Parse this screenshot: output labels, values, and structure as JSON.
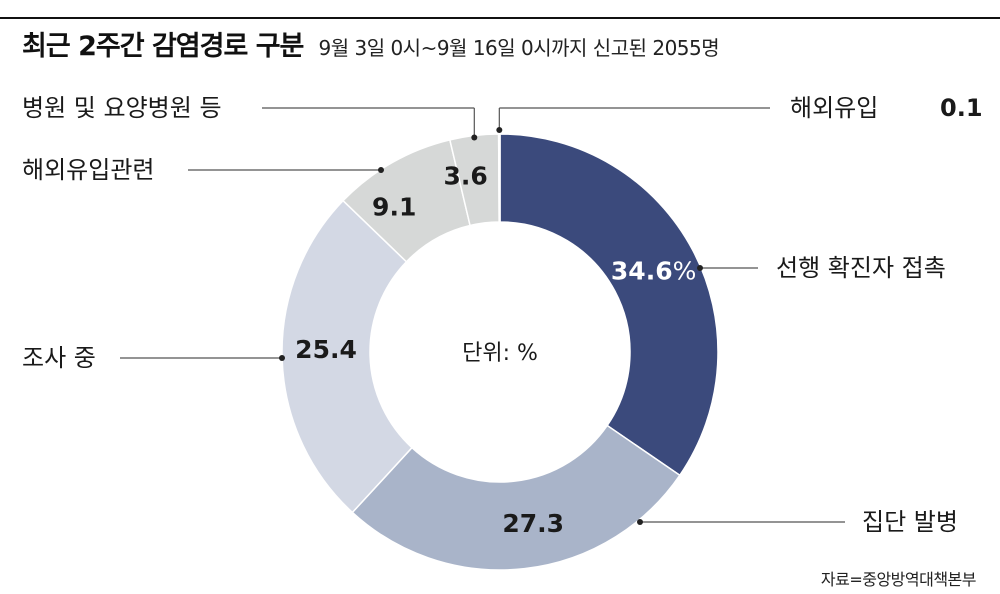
{
  "header": {
    "title": "최근 2주간 감염경로 구분",
    "subtitle": "9월 3일 0시~9월 16일 0시까지 신고된 2055명"
  },
  "source": "자료=중앙방역대책본부",
  "chart_data": {
    "type": "donut",
    "unit": "%",
    "center_label": "단위: %",
    "slices": [
      {
        "label": "선행 확진자 접촉",
        "value": 34.6,
        "value_text": "34.6",
        "suffix": "%",
        "color": "#3b4a7c",
        "text_color": "#ffffff"
      },
      {
        "label": "집단 발병",
        "value": 27.3,
        "value_text": "27.3",
        "suffix": "",
        "color": "#a9b4c9",
        "text_color": "#1a1a1a"
      },
      {
        "label": "조사 중",
        "value": 25.4,
        "value_text": "25.4",
        "suffix": "",
        "color": "#d3d8e4",
        "text_color": "#1a1a1a"
      },
      {
        "label": "해외유입관련",
        "value": 9.1,
        "value_text": "9.1",
        "suffix": "",
        "color": "#d6d8d7",
        "text_color": "#1a1a1a"
      },
      {
        "label": "병원 및 요양병원 등",
        "value": 3.6,
        "value_text": "3.6",
        "suffix": "",
        "color": "#d6d8d7",
        "text_color": "#1a1a1a"
      },
      {
        "label": "해외유입",
        "value": 0.1,
        "value_text": "0.1",
        "suffix": "",
        "color": "#d6d8d7",
        "text_color": "#1a1a1a"
      }
    ]
  }
}
